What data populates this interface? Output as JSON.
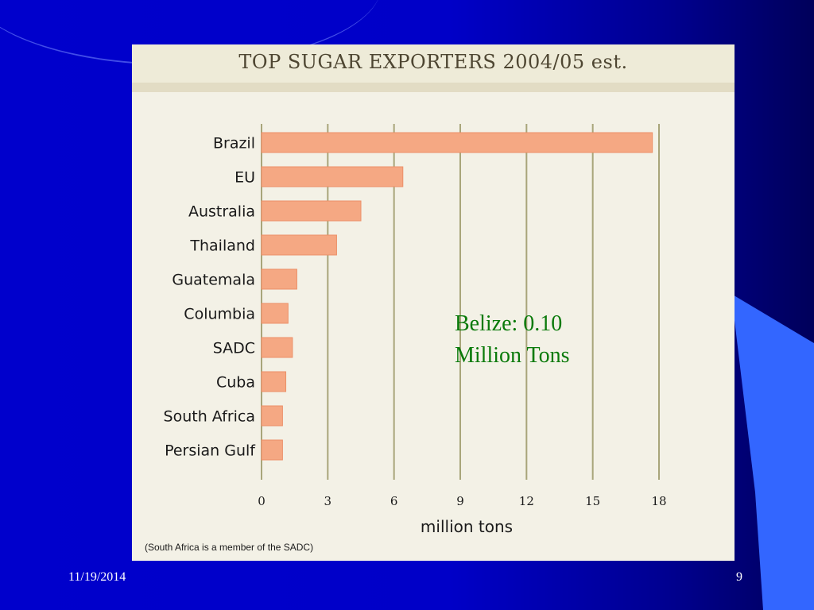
{
  "slide": {
    "date": "11/19/2014",
    "page_number": "9"
  },
  "callout": {
    "line1": "Belize: 0.10",
    "line2": "Million Tons"
  },
  "colors": {
    "bar_fill": "#f5a883",
    "bar_stroke": "#ec9068",
    "gridline": "#a8a57a",
    "panel_bg": "#f3f1e6",
    "callout_text": "#0a7a0a",
    "slide_bg": "#0000cc"
  },
  "chart_data": {
    "type": "bar",
    "orientation": "horizontal",
    "title": "TOP SUGAR EXPORTERS 2004/05 est.",
    "xlabel": "million tons",
    "ylabel": "",
    "note": "(South Africa is a member of the SADC)",
    "categories": [
      "Brazil",
      "EU",
      "Australia",
      "Thailand",
      "Guatemala",
      "Columbia",
      "SADC",
      "Cuba",
      "South Africa",
      "Persian Gulf"
    ],
    "values": [
      17.7,
      6.4,
      4.5,
      3.4,
      1.6,
      1.2,
      1.4,
      1.1,
      0.95,
      0.95
    ],
    "xlim": [
      0,
      18
    ],
    "xticks": [
      0,
      3,
      6,
      9,
      12,
      15,
      18
    ],
    "grid": true
  }
}
